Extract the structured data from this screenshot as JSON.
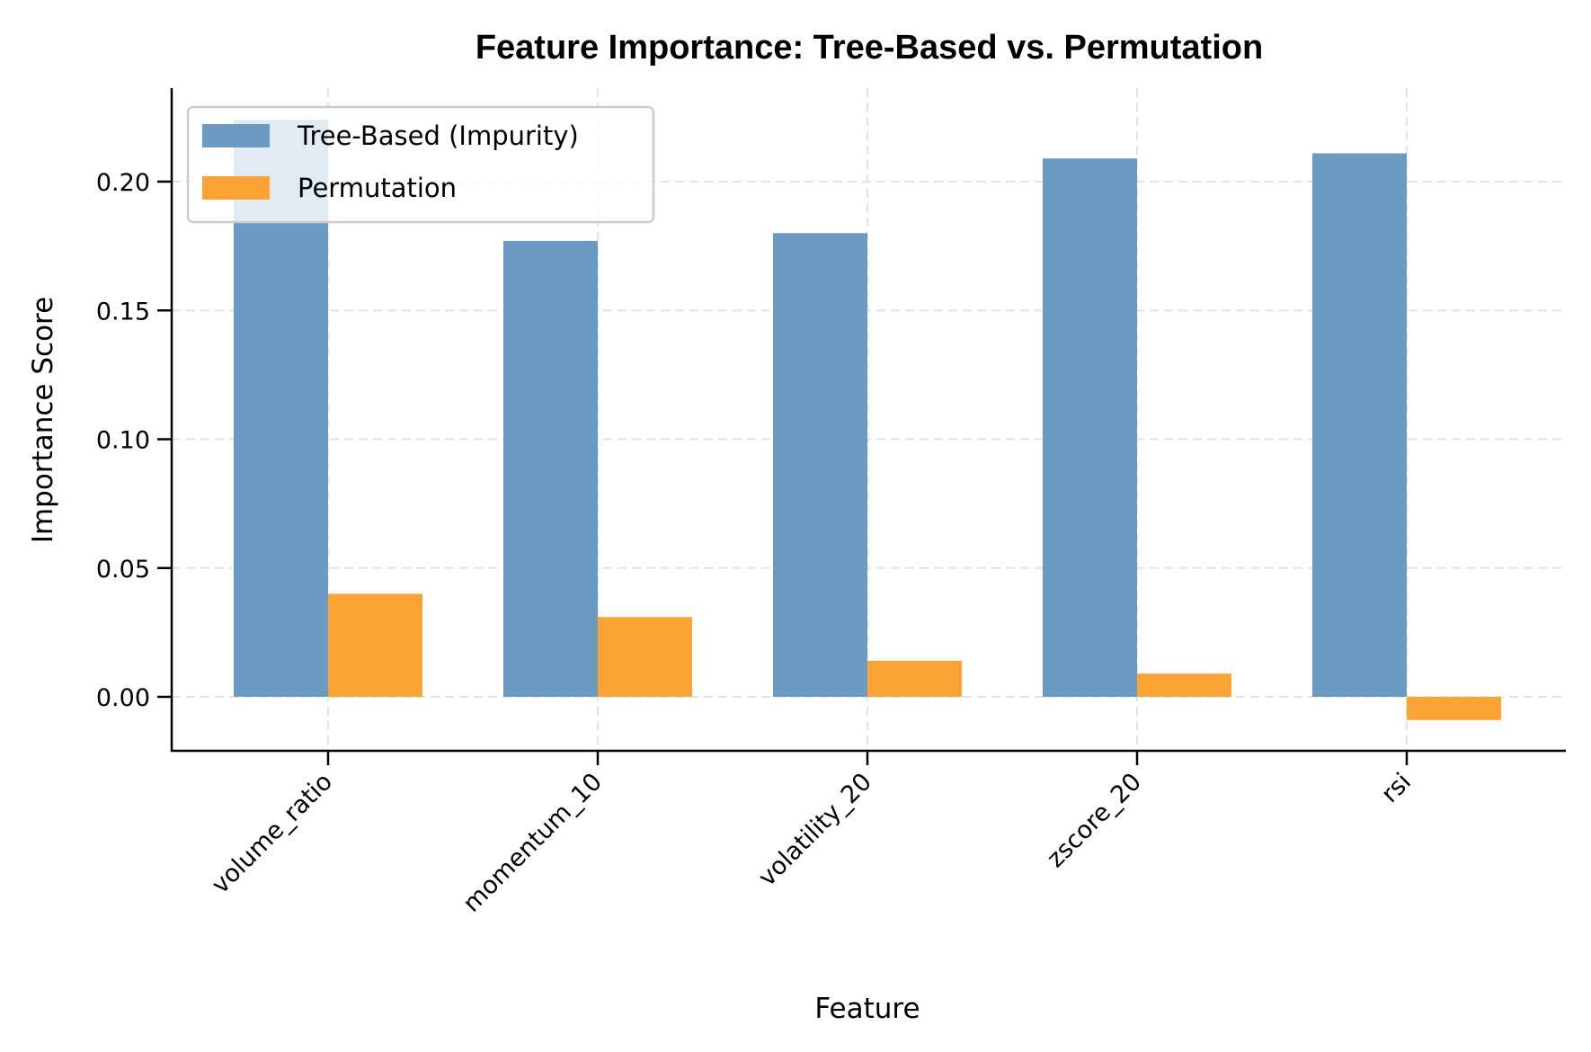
{
  "chart_data": {
    "type": "bar",
    "title": "Feature Importance: Tree-Based vs. Permutation",
    "xlabel": "Feature",
    "ylabel": "Importance Score",
    "categories": [
      "volume_ratio",
      "momentum_10",
      "volatility_20",
      "zscore_20",
      "rsi"
    ],
    "series": [
      {
        "name": "Tree-Based (Impurity)",
        "color": "#6b9bc3",
        "values": [
          0.224,
          0.177,
          0.18,
          0.209,
          0.211
        ]
      },
      {
        "name": "Permutation",
        "color": "#fca335",
        "values": [
          0.04,
          0.031,
          0.014,
          0.009,
          -0.009
        ]
      }
    ],
    "ylim": [
      -0.021,
      0.236
    ],
    "yticks": [
      0.0,
      0.05,
      0.1,
      0.15,
      0.2
    ],
    "ytick_labels": [
      "0.00",
      "0.05",
      "0.10",
      "0.15",
      "0.20"
    ],
    "grid": true,
    "grid_style": "dashed",
    "legend_position": "upper left",
    "xtick_rotation": 45
  }
}
